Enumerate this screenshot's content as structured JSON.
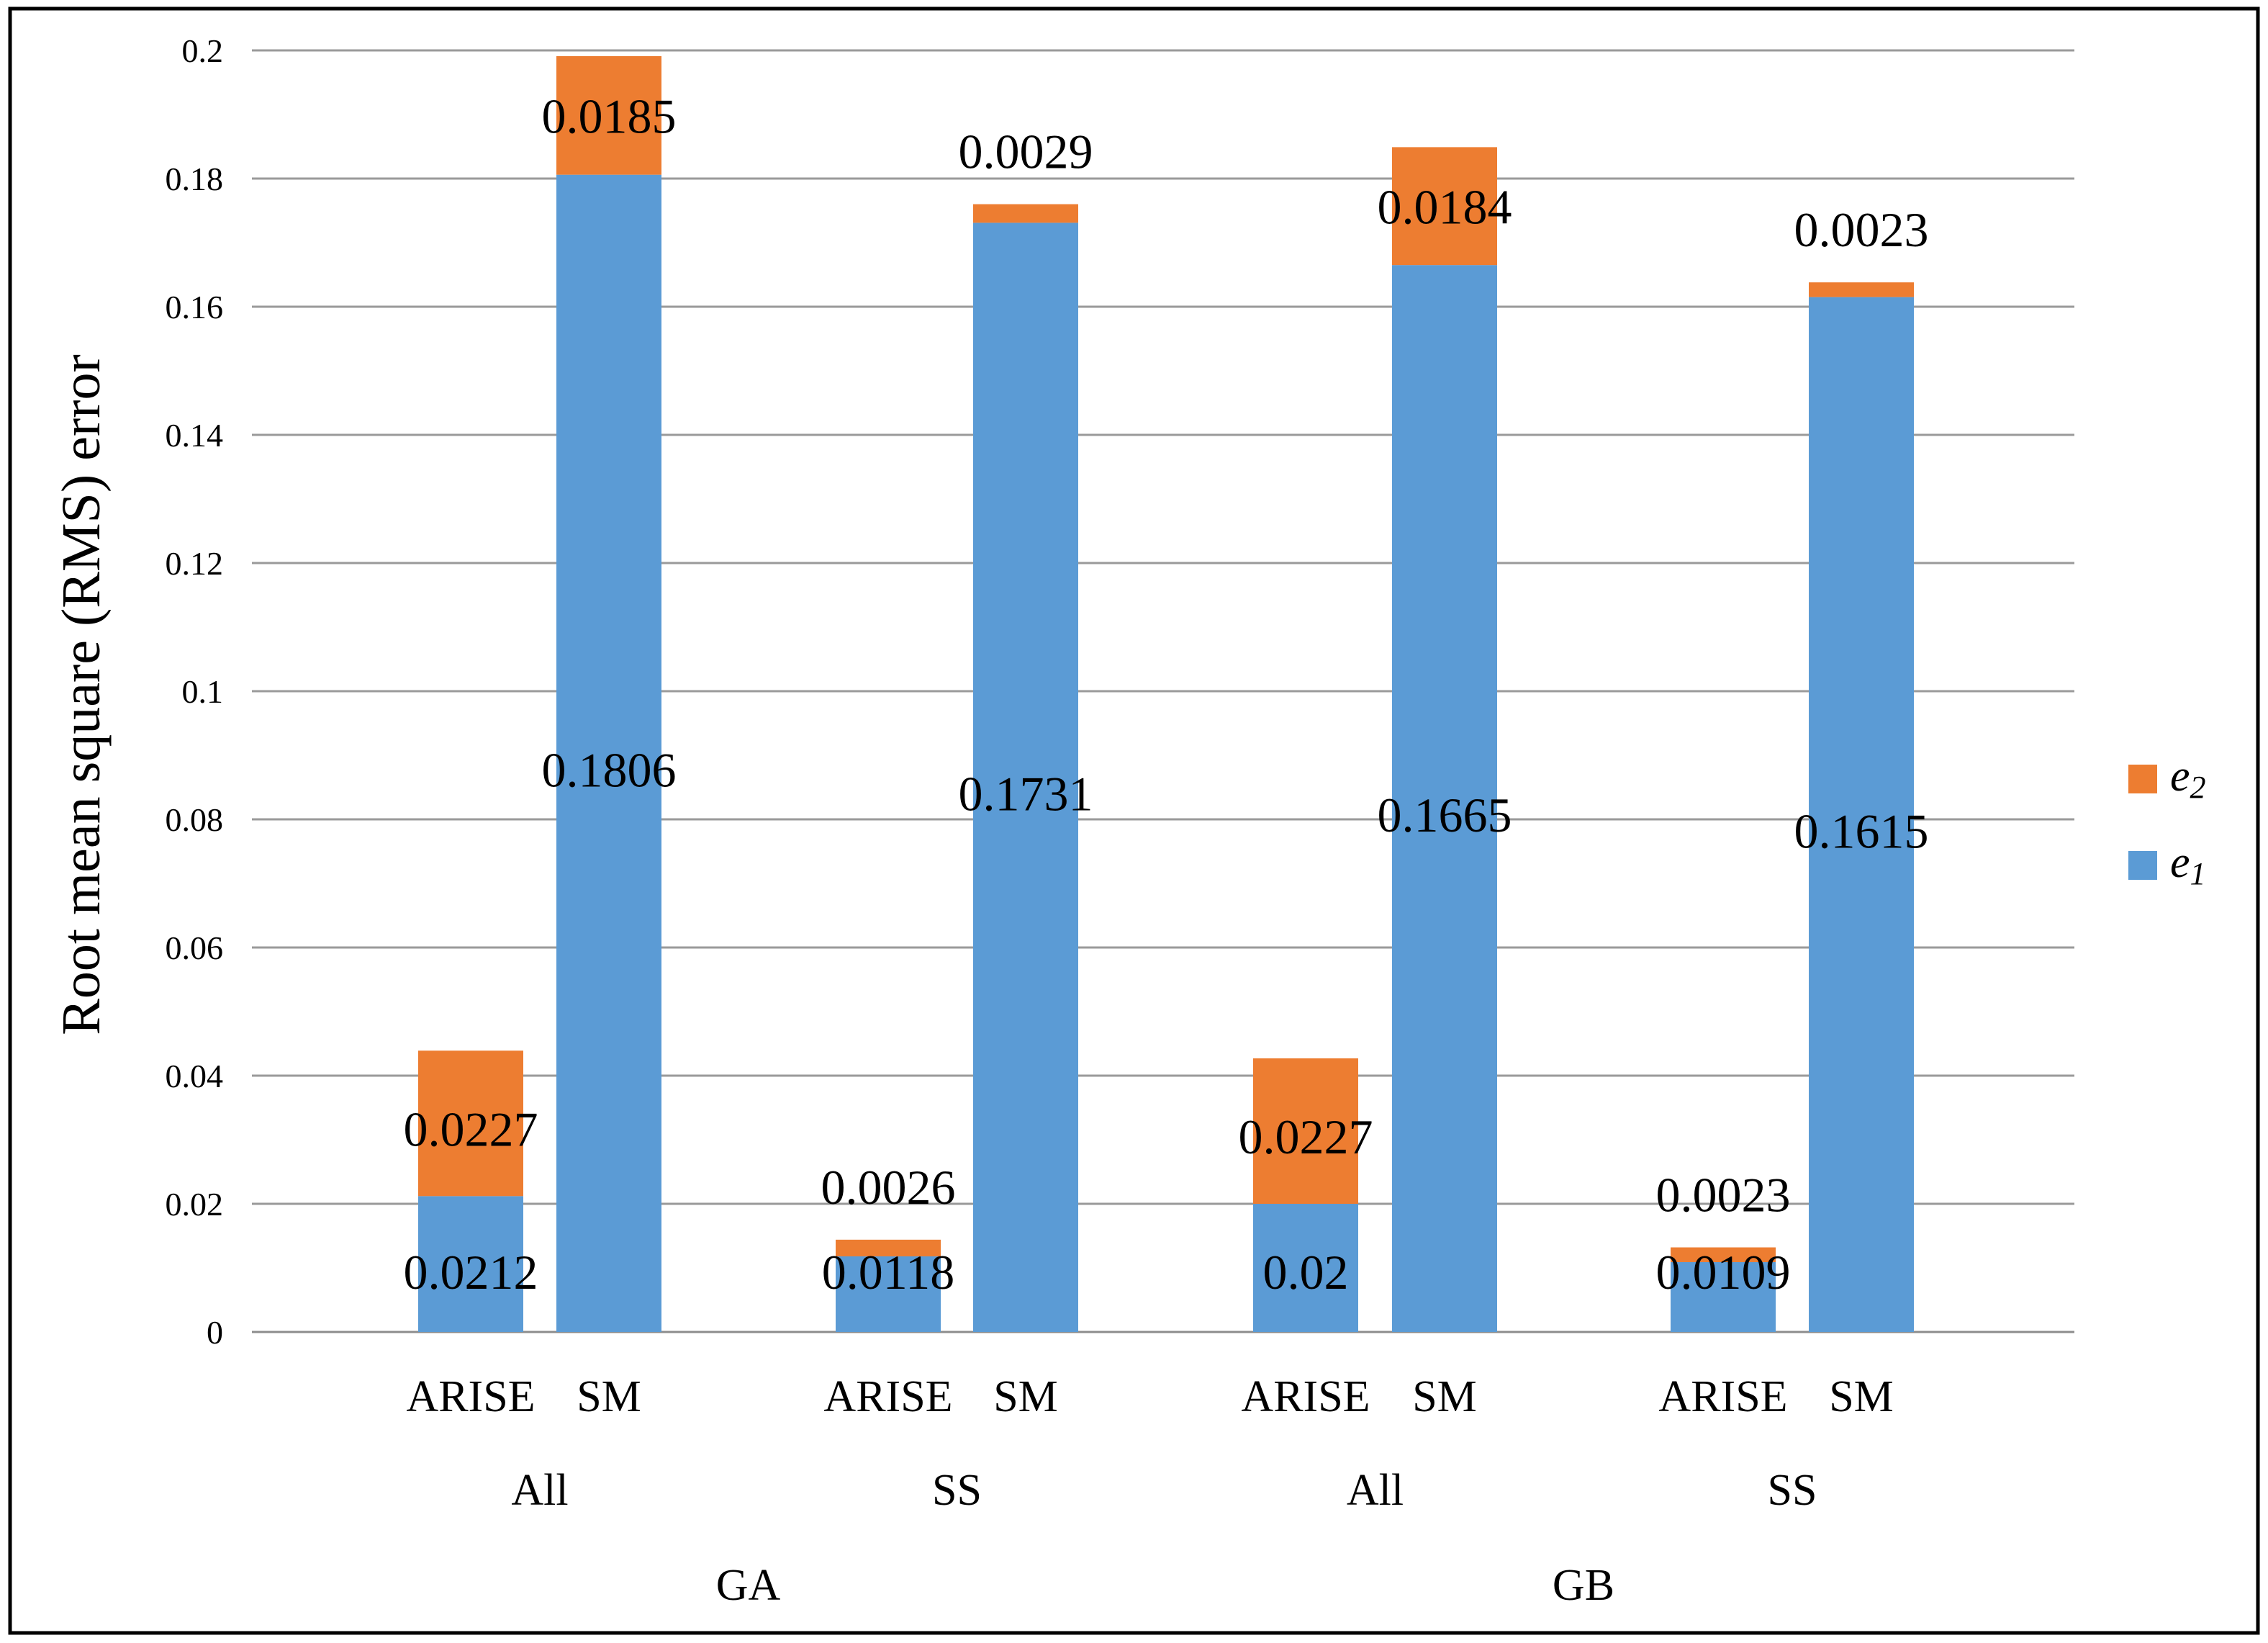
{
  "chart_data": {
    "type": "bar",
    "stacked": true,
    "title": "",
    "xlabel": "",
    "ylabel": "Root mean square (RMS) error",
    "ylim": [
      0,
      0.2
    ],
    "yticks": [
      {
        "value": 0,
        "label": "0"
      },
      {
        "value": 0.02,
        "label": "0.02"
      },
      {
        "value": 0.04,
        "label": "0.04"
      },
      {
        "value": 0.06,
        "label": "0.06"
      },
      {
        "value": 0.08,
        "label": "0.08"
      },
      {
        "value": 0.1,
        "label": "0.1"
      },
      {
        "value": 0.12,
        "label": "0.12"
      },
      {
        "value": 0.14,
        "label": "0.14"
      },
      {
        "value": 0.16,
        "label": "0.16"
      },
      {
        "value": 0.18,
        "label": "0.18"
      },
      {
        "value": 0.2,
        "label": "0.2"
      }
    ],
    "grid": true,
    "legend_position": "right",
    "categories": [
      "ARISE",
      "SM",
      "ARISE",
      "SM",
      "ARISE",
      "SM",
      "ARISE",
      "SM"
    ],
    "subgroups": [
      {
        "label": "All",
        "span": [
          0,
          1
        ]
      },
      {
        "label": "SS",
        "span": [
          2,
          3
        ]
      },
      {
        "label": "All",
        "span": [
          4,
          5
        ]
      },
      {
        "label": "SS",
        "span": [
          6,
          7
        ]
      }
    ],
    "groups": [
      {
        "label": "GA",
        "span": [
          0,
          3
        ]
      },
      {
        "label": "GB",
        "span": [
          4,
          7
        ]
      }
    ],
    "series": [
      {
        "name": "e1",
        "legend_base": "e",
        "legend_sub": "1",
        "color": "#5b9bd5",
        "values": [
          0.0212,
          0.1806,
          0.0118,
          0.1731,
          0.02,
          0.1665,
          0.0109,
          0.1615
        ],
        "labels": [
          "0.0212",
          "0.1806",
          "0.0118",
          "0.1731",
          "0.02",
          "0.1665",
          "0.0109",
          "0.1615"
        ]
      },
      {
        "name": "e2",
        "legend_base": "e",
        "legend_sub": "2",
        "color": "#ed7d31",
        "values": [
          0.0227,
          0.0185,
          0.0026,
          0.0029,
          0.0227,
          0.0184,
          0.0023,
          0.0023
        ],
        "labels": [
          "0.0227",
          "0.0185",
          "0.0026",
          "0.0029",
          "0.0227",
          "0.0184",
          "0.0023",
          "0.0023"
        ]
      }
    ]
  }
}
